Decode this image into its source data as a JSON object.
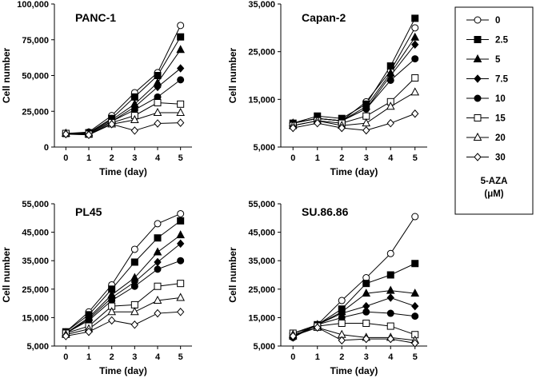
{
  "chart_data": [
    {
      "type": "line",
      "title": "PANC-1",
      "xlabel": "Time (day)",
      "ylabel": "Cell number",
      "x": [
        0,
        1,
        2,
        3,
        4,
        5
      ],
      "ylim": [
        0,
        100000
      ],
      "yticks": [
        0,
        25000,
        50000,
        75000,
        100000
      ],
      "ytick_labels": [
        "0",
        "25,000",
        "50,000",
        "75,000",
        "100,000"
      ],
      "series": [
        {
          "name": "0",
          "values": [
            9500,
            10500,
            22000,
            38000,
            52000,
            85000
          ]
        },
        {
          "name": "2.5",
          "values": [
            9500,
            10000,
            20000,
            35000,
            50000,
            77000
          ]
        },
        {
          "name": "5",
          "values": [
            9500,
            10000,
            19000,
            30000,
            45000,
            68000
          ]
        },
        {
          "name": "7.5",
          "values": [
            9500,
            9500,
            18000,
            28000,
            42000,
            55000
          ]
        },
        {
          "name": "10",
          "values": [
            9500,
            9500,
            18000,
            26000,
            35000,
            47000
          ]
        },
        {
          "name": "15",
          "values": [
            9500,
            9000,
            17000,
            22000,
            31000,
            30000
          ]
        },
        {
          "name": "20",
          "values": [
            9500,
            9000,
            16000,
            19000,
            24000,
            24000
          ]
        },
        {
          "name": "30",
          "values": [
            9000,
            8500,
            16000,
            11500,
            16500,
            17000
          ]
        }
      ]
    },
    {
      "type": "line",
      "title": "Capan-2",
      "xlabel": "Time (day)",
      "ylabel": "Cell number",
      "x": [
        0,
        1,
        2,
        3,
        4,
        5
      ],
      "ylim": [
        5000,
        35000
      ],
      "yticks": [
        5000,
        15000,
        25000,
        35000
      ],
      "ytick_labels": [
        "5,000",
        "15,000",
        "25,000",
        "35,000"
      ],
      "series": [
        {
          "name": "0",
          "values": [
            10000,
            11000,
            10500,
            14500,
            21000,
            30000
          ]
        },
        {
          "name": "2.5",
          "values": [
            10000,
            11500,
            11000,
            14000,
            22000,
            32000
          ]
        },
        {
          "name": "5",
          "values": [
            10000,
            11000,
            10500,
            13500,
            20500,
            28000
          ]
        },
        {
          "name": "7.5",
          "values": [
            10000,
            11000,
            10500,
            13000,
            20000,
            26500
          ]
        },
        {
          "name": "10",
          "values": [
            10000,
            11000,
            10500,
            13000,
            19000,
            23500
          ]
        },
        {
          "name": "15",
          "values": [
            9500,
            10500,
            10000,
            11500,
            14500,
            19500
          ]
        },
        {
          "name": "20",
          "values": [
            9500,
            10500,
            9500,
            10000,
            13500,
            16500
          ]
        },
        {
          "name": "30",
          "values": [
            9000,
            10000,
            9000,
            8500,
            10000,
            12000
          ]
        }
      ]
    },
    {
      "type": "line",
      "title": "PL45",
      "xlabel": "Time (day)",
      "ylabel": "Cell number",
      "x": [
        0,
        1,
        2,
        3,
        4,
        5
      ],
      "ylim": [
        5000,
        55000
      ],
      "yticks": [
        5000,
        15000,
        25000,
        35000,
        45000,
        55000
      ],
      "ytick_labels": [
        "5,000",
        "15,000",
        "25,000",
        "35,000",
        "45,000",
        "55,000"
      ],
      "series": [
        {
          "name": "0",
          "values": [
            10000,
            17000,
            26500,
            39000,
            48000,
            51500
          ]
        },
        {
          "name": "2.5",
          "values": [
            10000,
            16000,
            25000,
            34500,
            43000,
            49000
          ]
        },
        {
          "name": "5",
          "values": [
            9500,
            15000,
            23000,
            29000,
            38000,
            44000
          ]
        },
        {
          "name": "7.5",
          "values": [
            9500,
            14500,
            22000,
            27500,
            34500,
            41000
          ]
        },
        {
          "name": "10",
          "values": [
            9500,
            14000,
            21000,
            26000,
            32000,
            35000
          ]
        },
        {
          "name": "15",
          "values": [
            9500,
            12000,
            19000,
            19500,
            26000,
            27000
          ]
        },
        {
          "name": "20",
          "values": [
            9000,
            11000,
            17000,
            17000,
            21000,
            22000
          ]
        },
        {
          "name": "30",
          "values": [
            8500,
            10000,
            14000,
            12500,
            16500,
            17000
          ]
        }
      ]
    },
    {
      "type": "line",
      "title": "SU.86.86",
      "xlabel": "Time (day)",
      "ylabel": "Cell number",
      "x": [
        0,
        1,
        2,
        3,
        4,
        5
      ],
      "ylim": [
        5000,
        55000
      ],
      "yticks": [
        5000,
        15000,
        25000,
        35000,
        45000,
        55000
      ],
      "ytick_labels": [
        "5,000",
        "15,000",
        "25,000",
        "35,000",
        "45,000",
        "55,000"
      ],
      "series": [
        {
          "name": "0",
          "values": [
            9500,
            12500,
            21000,
            29000,
            37500,
            50500
          ]
        },
        {
          "name": "2.5",
          "values": [
            8500,
            12500,
            18000,
            27000,
            30000,
            34000
          ]
        },
        {
          "name": "5",
          "values": [
            8500,
            12500,
            17000,
            23500,
            24500,
            23500
          ]
        },
        {
          "name": "7.5",
          "values": [
            8000,
            12500,
            16500,
            19000,
            22000,
            19000
          ]
        },
        {
          "name": "10",
          "values": [
            8000,
            12500,
            15000,
            17000,
            16500,
            15500
          ]
        },
        {
          "name": "15",
          "values": [
            9500,
            12000,
            13000,
            13000,
            12000,
            9000
          ]
        },
        {
          "name": "20",
          "values": [
            9000,
            11500,
            9000,
            8000,
            8000,
            7000
          ]
        },
        {
          "name": "30",
          "values": [
            8500,
            11500,
            7000,
            7500,
            7500,
            6000
          ]
        }
      ]
    }
  ],
  "legend": {
    "entries": [
      {
        "label": "0",
        "marker": "circle",
        "filled": false
      },
      {
        "label": "2.5",
        "marker": "square",
        "filled": true
      },
      {
        "label": "5",
        "marker": "triangle",
        "filled": true
      },
      {
        "label": "7.5",
        "marker": "diamond",
        "filled": true
      },
      {
        "label": "10",
        "marker": "circle",
        "filled": true
      },
      {
        "label": "15",
        "marker": "square",
        "filled": false
      },
      {
        "label": "20",
        "marker": "triangle",
        "filled": false
      },
      {
        "label": "30",
        "marker": "diamond",
        "filled": false
      }
    ],
    "title_line1": "5-AZA",
    "title_line2": "(μM)"
  },
  "colors": {
    "line": "#000000",
    "filled_marker": "#000000",
    "open_marker": "#ffffff"
  }
}
